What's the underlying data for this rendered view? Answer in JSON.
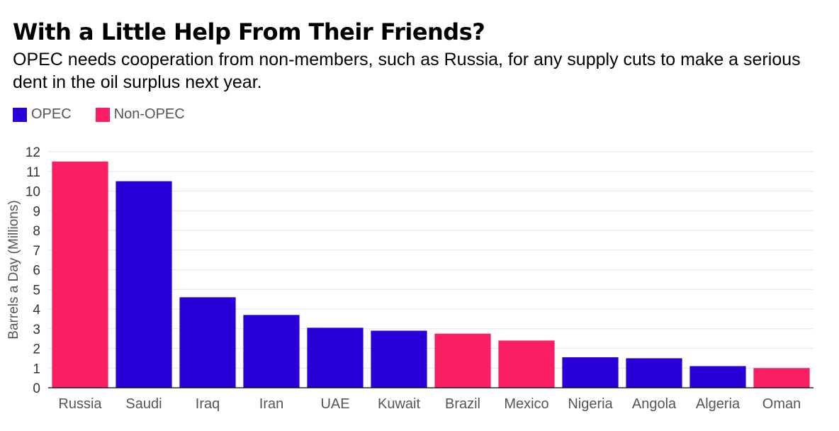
{
  "chart_data": {
    "type": "bar",
    "title": "With a Little Help From Their Friends?",
    "subtitle": "OPEC needs cooperation from non-members, such as Russia, for any supply cuts to make a serious dent in the oil surplus next year.",
    "ylabel": "Barrels a Day (Millions)",
    "xlabel": "",
    "ylim": [
      0,
      12
    ],
    "yticks": [
      "0",
      "1",
      "2",
      "3",
      "4",
      "5",
      "6",
      "7",
      "8",
      "9",
      "10",
      "11",
      "12"
    ],
    "grid": true,
    "legend_position": "top-left",
    "series": [
      {
        "name": "OPEC",
        "color": "#2a00d9"
      },
      {
        "name": "Non-OPEC",
        "color": "#fa1f63"
      }
    ],
    "categories": [
      "Russia",
      "Saudi",
      "Iraq",
      "Iran",
      "UAE",
      "Kuwait",
      "Brazil",
      "Mexico",
      "Nigeria",
      "Angola",
      "Algeria",
      "Oman"
    ],
    "values": [
      11.5,
      10.5,
      4.6,
      3.7,
      3.05,
      2.9,
      2.75,
      2.4,
      1.55,
      1.5,
      1.1,
      1.0
    ],
    "groups": [
      "Non-OPEC",
      "OPEC",
      "OPEC",
      "OPEC",
      "OPEC",
      "OPEC",
      "Non-OPEC",
      "Non-OPEC",
      "OPEC",
      "OPEC",
      "OPEC",
      "Non-OPEC"
    ]
  }
}
